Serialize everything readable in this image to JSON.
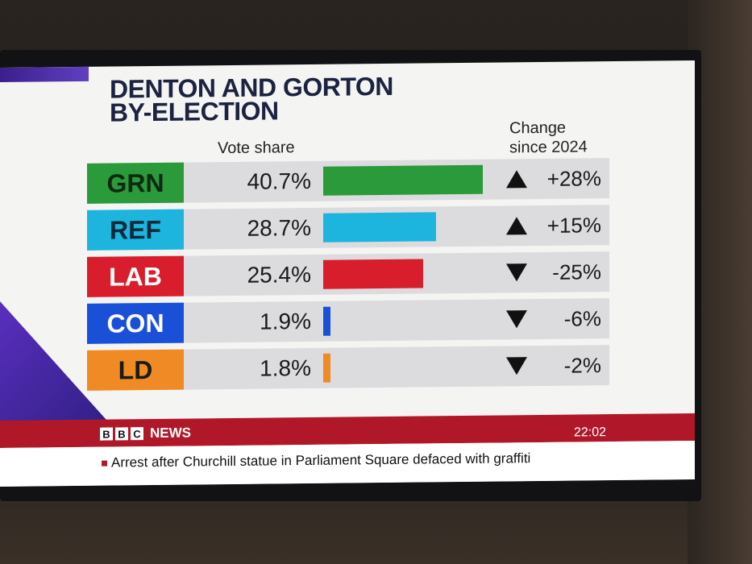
{
  "graphic": {
    "title_line1": "DENTON AND GORTON",
    "title_line2": "BY-ELECTION",
    "col_vote_share": "Vote share",
    "col_change_line1": "Change",
    "col_change_line2": "since 2024"
  },
  "results": [
    {
      "party": "GRN",
      "vote_share": "40.7%",
      "share_value": 40.7,
      "change": "+28%",
      "direction": "up",
      "color": "#2a9a3a",
      "text_color": "#0e2a12"
    },
    {
      "party": "REF",
      "vote_share": "28.7%",
      "share_value": 28.7,
      "change": "+15%",
      "direction": "up",
      "color": "#1db4de",
      "text_color": "#0b2a3a"
    },
    {
      "party": "LAB",
      "vote_share": "25.4%",
      "share_value": 25.4,
      "change": "-25%",
      "direction": "down",
      "color": "#d81e2c",
      "text_color": "#ffffff"
    },
    {
      "party": "CON",
      "vote_share": "1.9%",
      "share_value": 1.9,
      "change": "-6%",
      "direction": "down",
      "color": "#1a4fd8",
      "text_color": "#ffffff"
    },
    {
      "party": "LD",
      "vote_share": "1.8%",
      "share_value": 1.8,
      "change": "-2%",
      "direction": "down",
      "color": "#f08a24",
      "text_color": "#1a1a1a"
    }
  ],
  "news": {
    "bbc_letters": [
      "B",
      "B",
      "C"
    ],
    "label": "NEWS",
    "ticker": "Arrest after Churchill statue in Parliament Square defaced with graffiti",
    "clock": "22:02"
  }
}
